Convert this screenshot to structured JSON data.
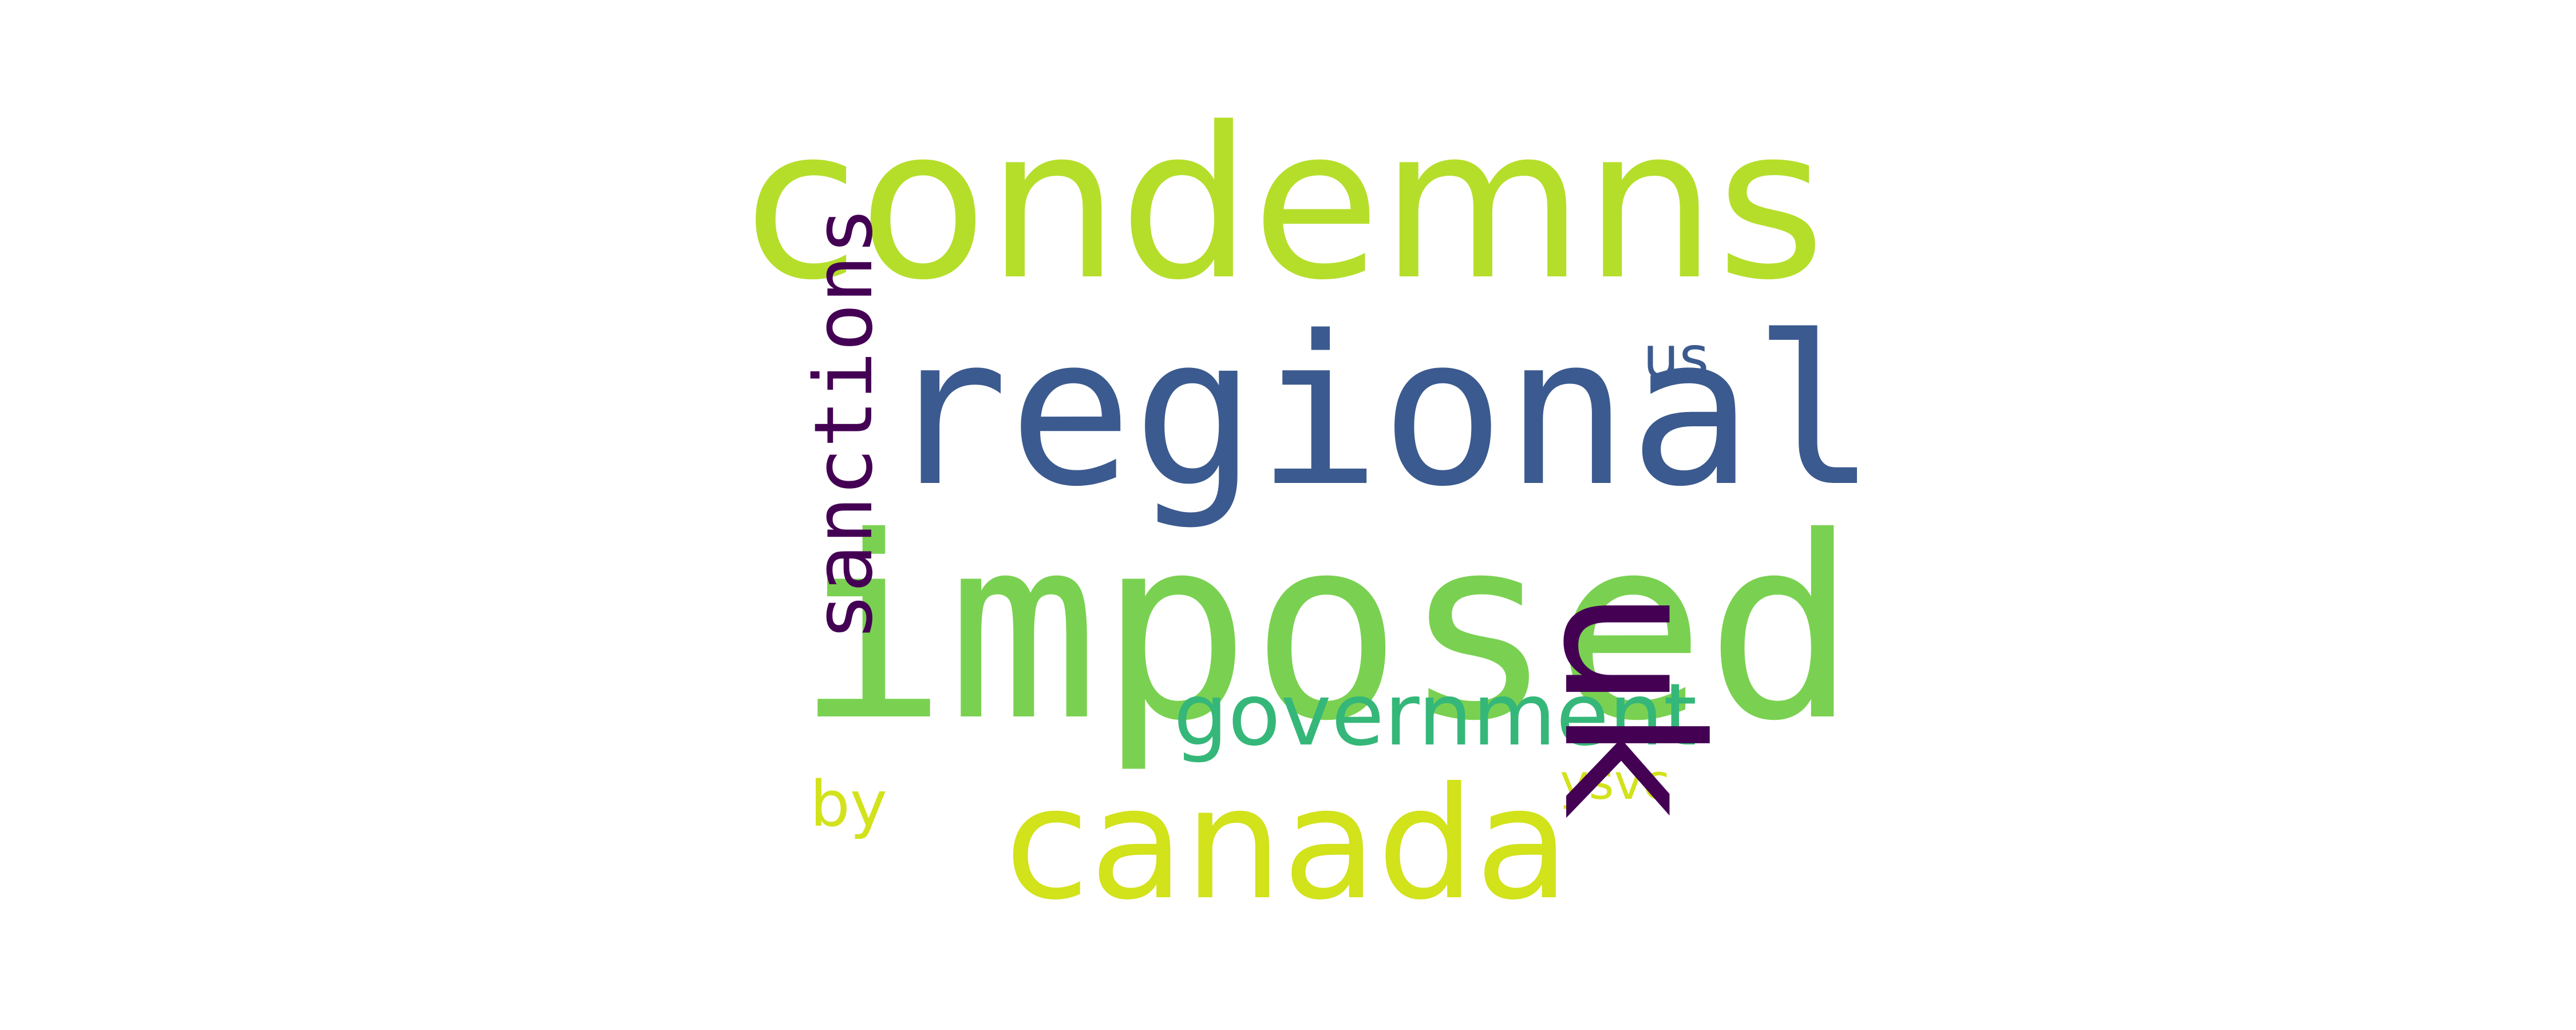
{
  "words": [
    {
      "key": "condemns",
      "text": "condemns",
      "color": "#b5de2b"
    },
    {
      "key": "regional",
      "text": "regional",
      "color": "#3b5a8f"
    },
    {
      "key": "imposed",
      "text": "imposed",
      "color": "#7ad151"
    },
    {
      "key": "canada",
      "text": "canada",
      "color": "#d2e21b"
    },
    {
      "key": "government",
      "text": "government",
      "color": "#35b779"
    },
    {
      "key": "us",
      "text": "us",
      "color": "#3b5a8f"
    },
    {
      "key": "ysvc",
      "text": "ysvc",
      "color": "#d2e21b"
    },
    {
      "key": "by",
      "text": "by",
      "color": "#d2e21b"
    },
    {
      "key": "sanctions",
      "text": "sanctions",
      "color": "#440154"
    },
    {
      "key": "uk",
      "text": "uk",
      "color": "#440154"
    }
  ]
}
